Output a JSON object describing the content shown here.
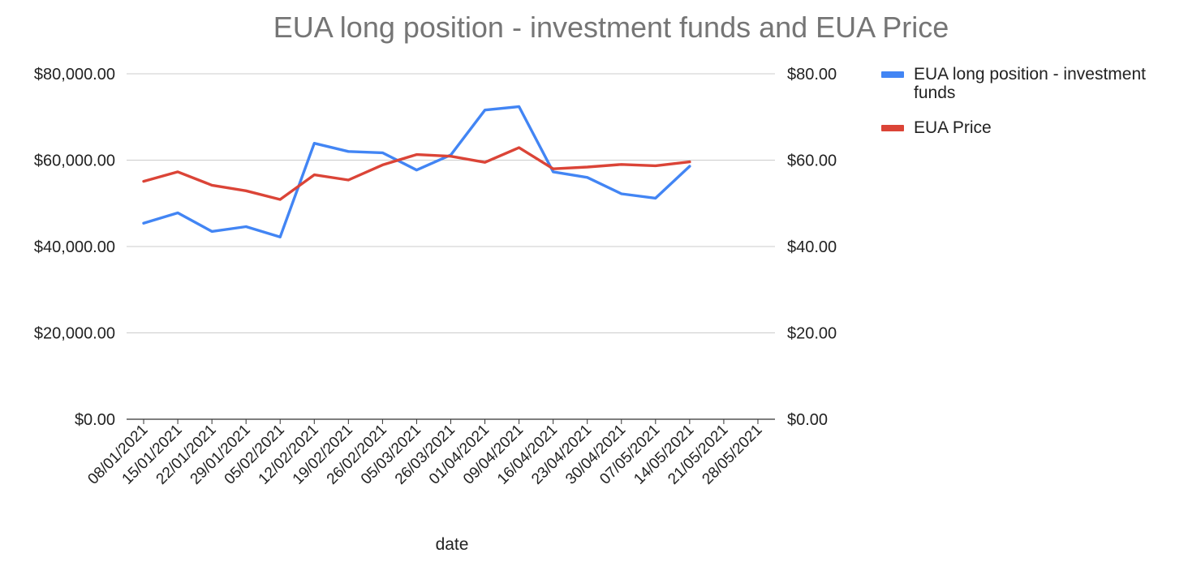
{
  "chart_data": {
    "type": "line",
    "title": "EUA long position - investment funds and EUA Price",
    "xlabel": "date",
    "ylabel_left": "",
    "ylabel_right": "",
    "categories": [
      "08/01/2021",
      "15/01/2021",
      "22/01/2021",
      "29/01/2021",
      "05/02/2021",
      "12/02/2021",
      "19/02/2021",
      "26/02/2021",
      "05/03/2021",
      "26/03/2021",
      "01/04/2021",
      "09/04/2021",
      "16/04/2021",
      "23/04/2021",
      "30/04/2021",
      "07/05/2021",
      "14/05/2021",
      "21/05/2021",
      "28/05/2021"
    ],
    "left_axis": {
      "min": 0,
      "max": 80000,
      "ticks": [
        0,
        20000,
        40000,
        60000,
        80000
      ],
      "tick_labels": [
        "$0.00",
        "$20,000.00",
        "$40,000.00",
        "$60,000.00",
        "$80,000.00"
      ]
    },
    "right_axis": {
      "min": 0,
      "max": 80,
      "ticks": [
        0,
        20,
        40,
        60,
        80
      ],
      "tick_labels": [
        "$0.00",
        "$20.00",
        "$40.00",
        "$60.00",
        "$80.00"
      ]
    },
    "series": [
      {
        "name": "EUA long position - investment funds",
        "axis": "left",
        "color": "#4285f4",
        "values": [
          45400,
          47800,
          43500,
          44600,
          42200,
          63900,
          62000,
          61700,
          57700,
          61200,
          71600,
          72400,
          57300,
          56000,
          52200,
          51200,
          58600,
          null,
          null
        ]
      },
      {
        "name": "EUA Price",
        "axis": "right",
        "color": "#db4437",
        "values": [
          55.1,
          57.3,
          54.2,
          52.9,
          50.9,
          56.6,
          55.4,
          58.9,
          61.3,
          60.9,
          59.5,
          62.9,
          58.0,
          58.4,
          59.0,
          58.7,
          59.6,
          null,
          null
        ]
      }
    ],
    "grid": true,
    "legend_position": "right"
  }
}
